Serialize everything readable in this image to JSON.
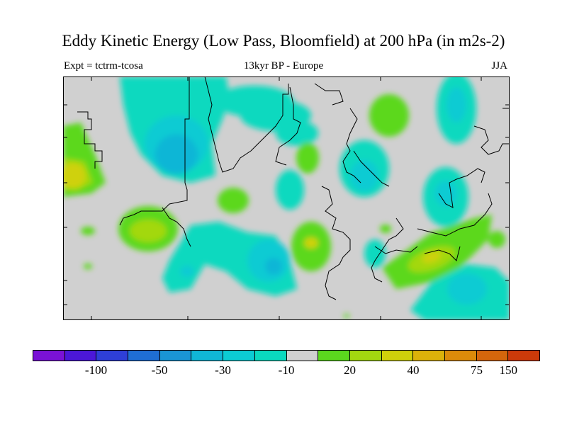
{
  "title": "Eddy Kinetic Energy (Low Pass, Bloomfield) at 200 hPa (in m2s-2)",
  "expt_label": "Expt = tctrm-tcosa",
  "subtitle": "13kyr BP - Europe",
  "season": "JJA",
  "colors": {
    "background_field": "#d0d0d0",
    "coastline": "#000000"
  },
  "colorbar": {
    "colors": [
      "#7a12d6",
      "#4b17d8",
      "#2e3fd8",
      "#1f6ed4",
      "#1a95d4",
      "#10b6d6",
      "#0ccbd3",
      "#0ad9bf",
      "#d0d0d0",
      "#5bd81e",
      "#a3d810",
      "#cfd10b",
      "#dcb20a",
      "#dc8b0a",
      "#d4660c",
      "#cc3a0a"
    ],
    "tick_labels": [
      "-100",
      "-50",
      "-30",
      "-10",
      "20",
      "40",
      "75",
      "150"
    ]
  }
}
